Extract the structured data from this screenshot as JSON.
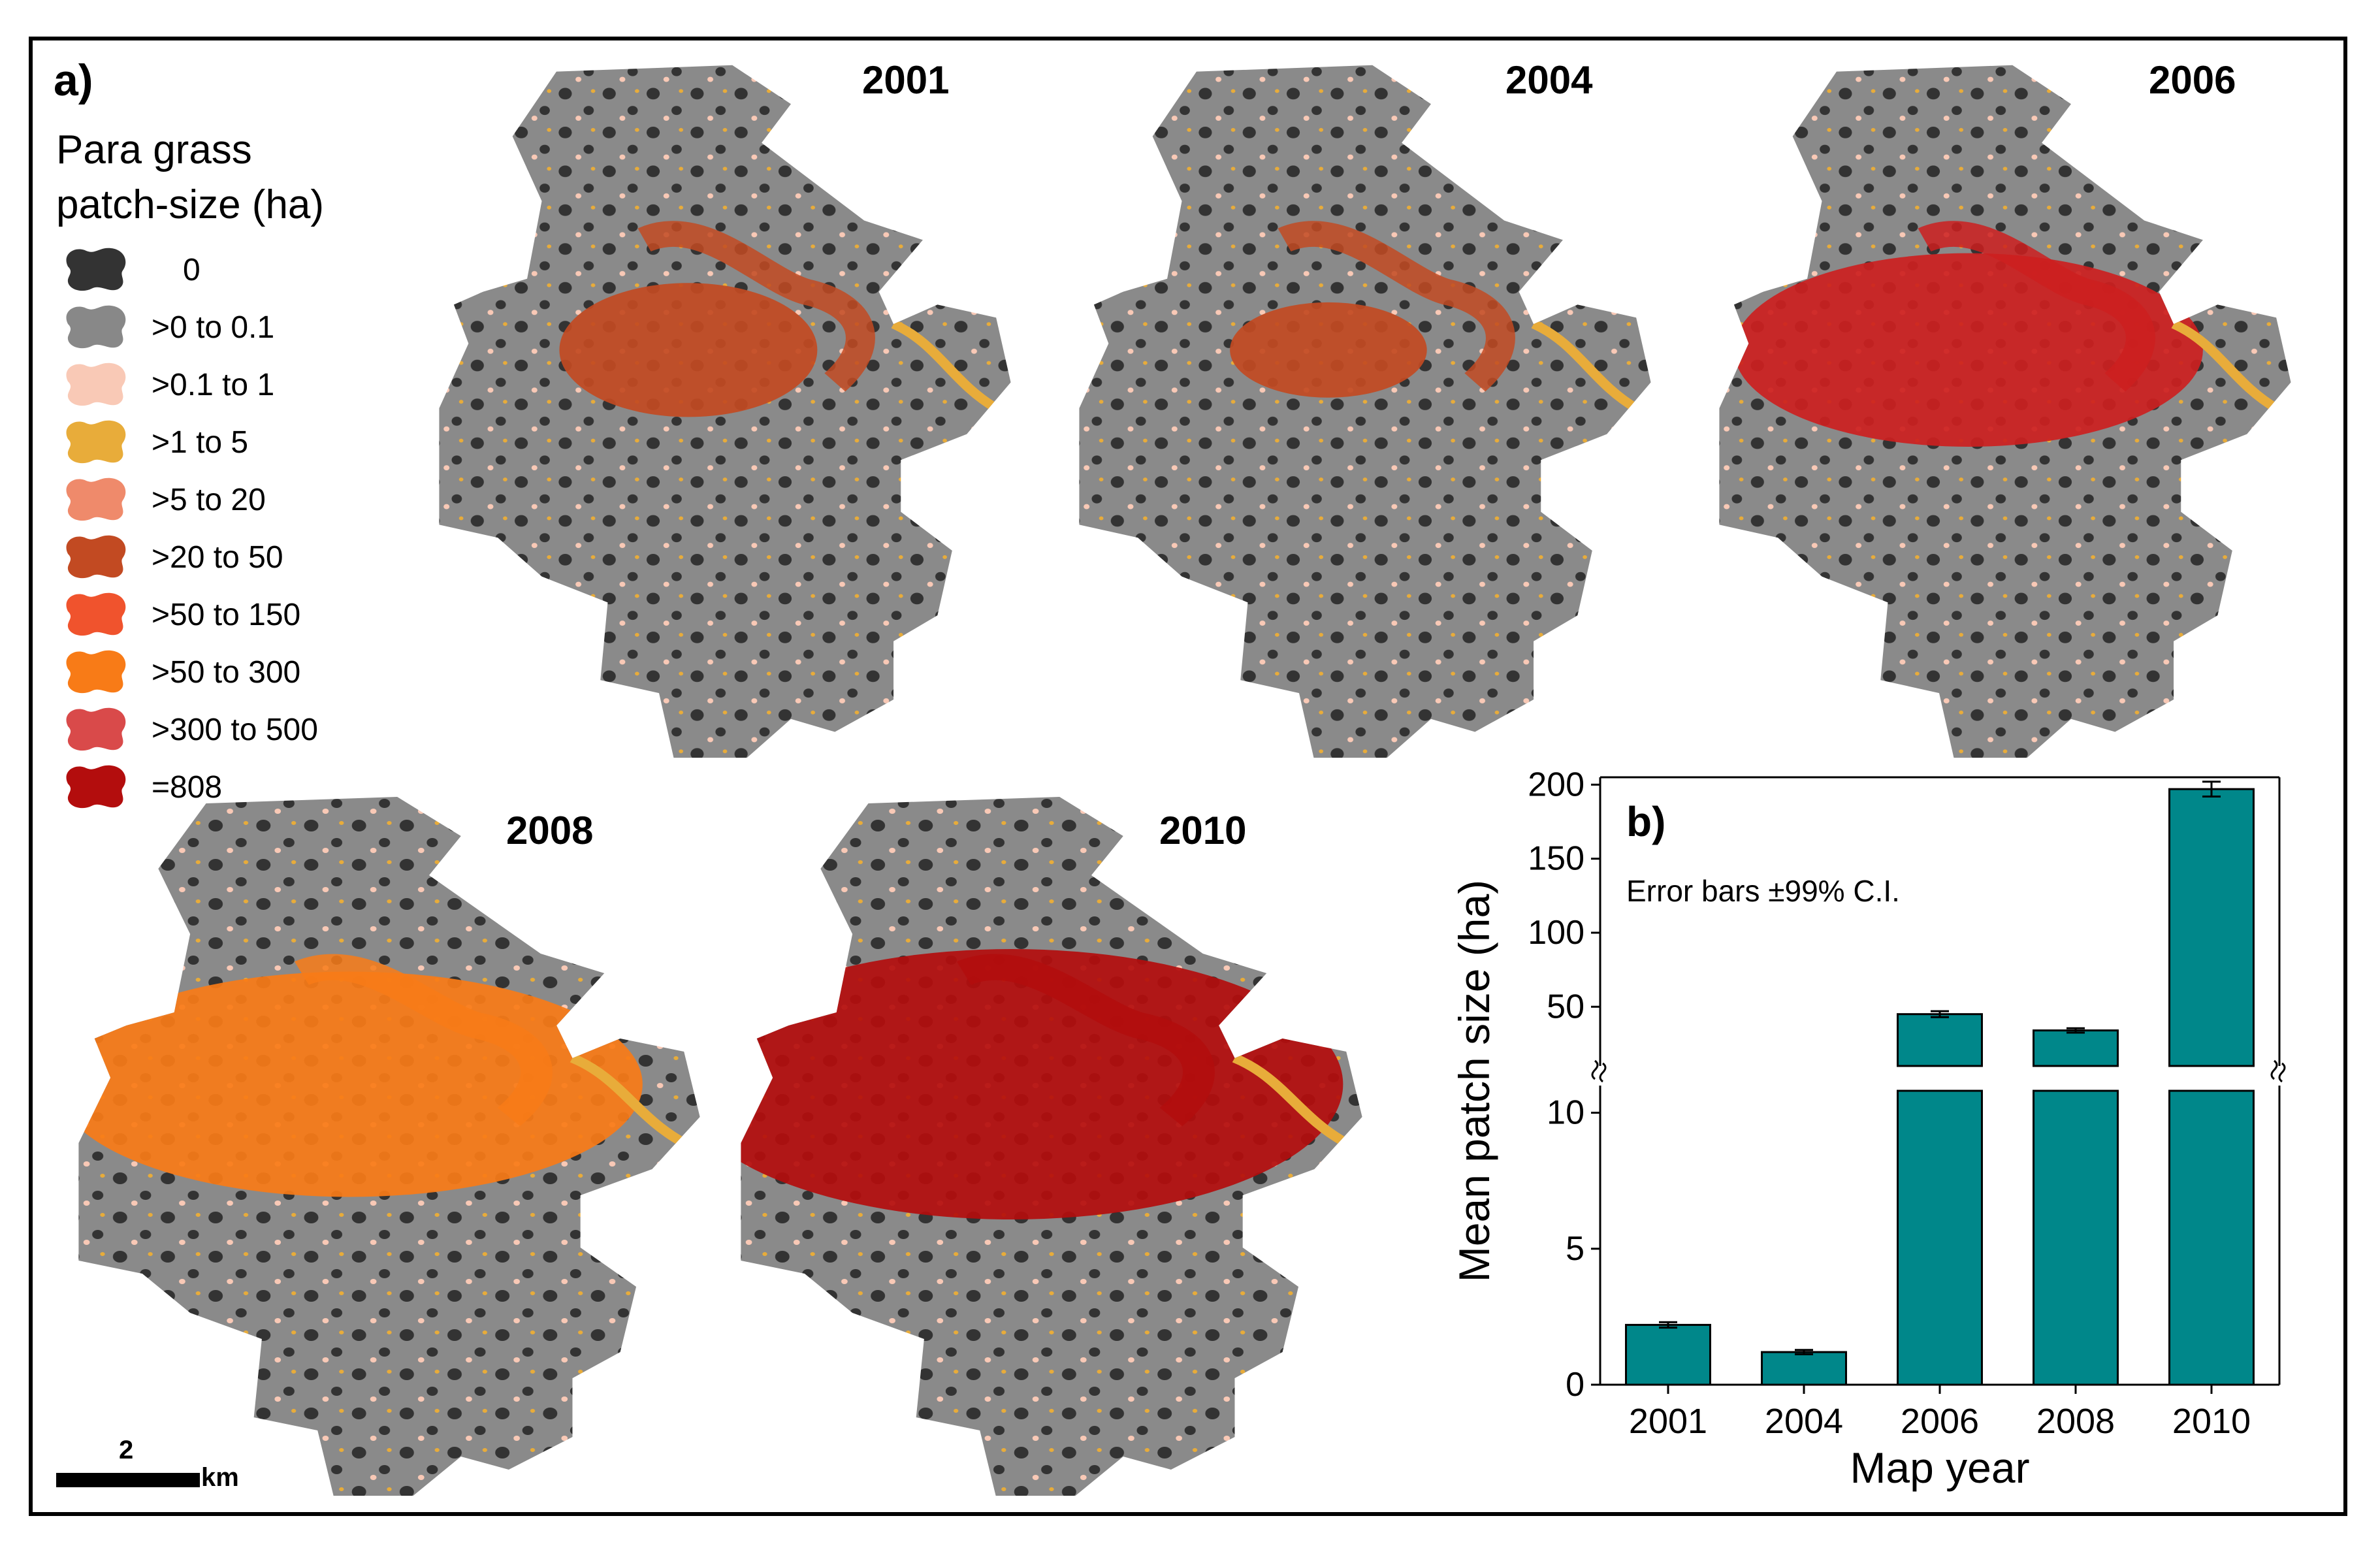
{
  "panel_a": {
    "label": "a)",
    "legend_title_line1": "Para grass",
    "legend_title_line2": "patch-size (ha)",
    "legend": [
      {
        "label": "0",
        "color": "#333333"
      },
      {
        "label": ">0 to 0.1",
        "color": "#888888"
      },
      {
        "label": ">0.1 to 1",
        "color": "#f9c9b6"
      },
      {
        "label": ">1 to 5",
        "color": "#e8ac3a"
      },
      {
        "label": ">5 to 20",
        "color": "#ef8a6b"
      },
      {
        "label": ">20 to 50",
        "color": "#c24a22"
      },
      {
        "label": ">50 to 150",
        "color": "#f0532d"
      },
      {
        "label": ">50 to 300",
        "color": "#f87b17"
      },
      {
        "label": ">300  to 500",
        "color": "#d94a4a"
      },
      {
        "label": "=808",
        "color": "#b30d0d"
      }
    ],
    "maps": [
      {
        "year": "2001",
        "accent": "#c24a22"
      },
      {
        "year": "2004",
        "accent": "#c24a22"
      },
      {
        "year": "2006",
        "accent": "#cc1f1f"
      },
      {
        "year": "2008",
        "accent": "#f87b17"
      },
      {
        "year": "2010",
        "accent": "#b30d0d"
      }
    ],
    "scale_value": "2",
    "scale_unit": "km"
  },
  "chart_data": {
    "type": "bar",
    "panel_label": "b)",
    "annotation": "Error bars ±99% C.I.",
    "categories": [
      "2001",
      "2004",
      "2006",
      "2008",
      "2010"
    ],
    "values": [
      2.2,
      1.2,
      45,
      34,
      197
    ],
    "errors": [
      0.1,
      0.08,
      2,
      1.5,
      5
    ],
    "xlabel": "Map year",
    "ylabel": "Mean patch size  (ha)",
    "lower_ylim": [
      0,
      11
    ],
    "lower_ticks": [
      0,
      5,
      10
    ],
    "upper_ylim": [
      10,
      205
    ],
    "upper_ticks": [
      50,
      100,
      150,
      200
    ],
    "bar_color": "#00878a",
    "broken_axis": true
  }
}
